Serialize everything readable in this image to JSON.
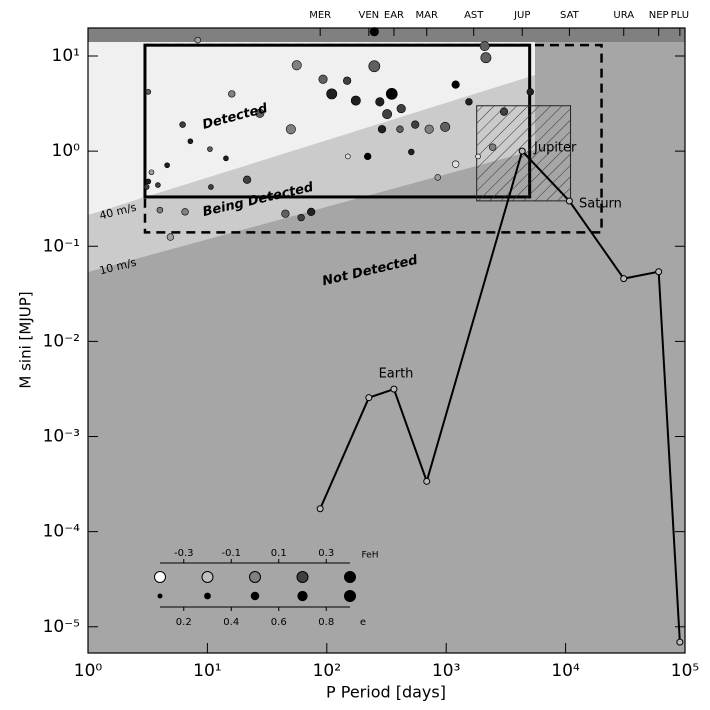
{
  "chart_data": {
    "type": "scatter",
    "xlabel": "P Period [days]",
    "ylabel": "M sini [MJUP]",
    "xscale": "log",
    "yscale": "log",
    "xlim": [
      1,
      100000
    ],
    "ylim": [
      5.3e-06,
      19.7
    ],
    "xticks": [
      {
        "value": 1,
        "label": "10⁰"
      },
      {
        "value": 10,
        "label": "10¹"
      },
      {
        "value": 100,
        "label": "10²"
      },
      {
        "value": 1000,
        "label": "10³"
      },
      {
        "value": 10000,
        "label": "10⁴"
      },
      {
        "value": 100000,
        "label": "10⁵"
      }
    ],
    "yticks": [
      {
        "value": 1e-05,
        "label": "10⁻⁵"
      },
      {
        "value": 0.0001,
        "label": "10⁻⁴"
      },
      {
        "value": 0.001,
        "label": "10⁻³"
      },
      {
        "value": 0.01,
        "label": "10⁻²"
      },
      {
        "value": 0.1,
        "label": "10⁻¹"
      },
      {
        "value": 1,
        "label": "10⁰"
      },
      {
        "value": 10,
        "label": "10¹"
      }
    ],
    "top_ticks": [
      {
        "value": 88,
        "label": "MER"
      },
      {
        "value": 225,
        "label": "VEN"
      },
      {
        "value": 365,
        "label": "EAR"
      },
      {
        "value": 687,
        "label": "MAR"
      },
      {
        "value": 1700,
        "label": "AST"
      },
      {
        "value": 4333,
        "label": "JUP"
      },
      {
        "value": 10759,
        "label": "SAT"
      },
      {
        "value": 30687,
        "label": "URA"
      },
      {
        "value": 60190,
        "label": "NEP"
      },
      {
        "value": 90560,
        "label": "PLU"
      }
    ],
    "exoplanets": {
      "x": [
        3.2,
        3.2,
        3.1,
        3.4,
        3.85,
        4.0,
        4.9,
        4.6,
        6.2,
        6.5,
        7.2,
        8.3,
        10.5,
        10.7,
        14.3,
        16,
        21.5,
        27.5,
        50,
        45,
        61,
        74,
        56,
        93,
        110,
        148,
        175,
        220,
        250,
        250,
        278,
        320,
        350,
        410,
        510,
        550,
        720,
        980,
        1200,
        1550,
        2150,
        2450,
        1850,
        3050,
        2100,
        5060,
        850,
        1200,
        150,
        420,
        290
      ],
      "values": [
        4.2,
        0.48,
        0.42,
        0.6,
        0.44,
        0.24,
        0.125,
        0.71,
        1.9,
        0.23,
        1.27,
        14.7,
        1.05,
        0.42,
        0.84,
        4,
        0.5,
        2.5,
        1.7,
        0.22,
        0.2,
        0.23,
        8,
        5.7,
        4,
        5.5,
        3.4,
        0.88,
        18,
        7.8,
        3.3,
        2.45,
        4,
        1.7,
        0.98,
        1.9,
        1.7,
        1.8,
        5,
        3.3,
        9.6,
        1.1,
        0.88,
        2.6,
        12.7,
        4.2,
        0.53,
        0.73,
        0.88,
        2.8,
        1.7
      ],
      "feh": [
        0.1,
        0.3,
        0.2,
        -0.1,
        0.2,
        0.0,
        -0.1,
        0.3,
        0.2,
        0.0,
        0.3,
        -0.1,
        0.1,
        0.2,
        0.3,
        0.0,
        0.2,
        0.1,
        0.0,
        0.1,
        0.2,
        0.3,
        0.0,
        0.1,
        0.3,
        0.2,
        0.3,
        0.4,
        0.4,
        0.1,
        0.3,
        0.2,
        0.4,
        0.1,
        0.3,
        0.2,
        0.0,
        0.1,
        0.4,
        0.3,
        0.1,
        0.0,
        -0.3,
        0.2,
        0.1,
        0.3,
        -0.1,
        -0.3,
        -0.3,
        0.2,
        0.3
      ],
      "e": [
        0.05,
        0.02,
        0.1,
        0.05,
        0.1,
        0.2,
        0.3,
        0.1,
        0.2,
        0.3,
        0.1,
        0.2,
        0.1,
        0.05,
        0.1,
        0.3,
        0.4,
        0.5,
        0.6,
        0.4,
        0.3,
        0.4,
        0.6,
        0.5,
        0.7,
        0.4,
        0.6,
        0.3,
        0.5,
        0.8,
        0.5,
        0.6,
        0.8,
        0.3,
        0.2,
        0.4,
        0.5,
        0.6,
        0.4,
        0.3,
        0.7,
        0.3,
        0.1,
        0.4,
        0.6,
        0.3,
        0.2,
        0.3,
        0.1,
        0.5,
        0.4
      ]
    },
    "solar_system": {
      "color": "#000000",
      "x": [
        88,
        225,
        365,
        687,
        4333,
        10759,
        30687,
        60190,
        90560
      ],
      "values": [
        0.000174,
        0.00256,
        0.00315,
        0.000338,
        1,
        0.299,
        0.0457,
        0.054,
        6.9e-06
      ]
    },
    "boxes": [
      {
        "x": [
          3,
          5000
        ],
        "y": [
          0.33,
          13
        ],
        "style": "solid"
      },
      {
        "x": [
          3,
          20000
        ],
        "y": [
          0.14,
          13
        ],
        "style": "dashed"
      },
      {
        "x": [
          1800,
          11000
        ],
        "y": [
          0.3,
          3
        ],
        "style": "hatched"
      }
    ],
    "annotations": [
      "Detected",
      "Being Detected",
      "Not Detected",
      "40 m/s",
      "10 m/s",
      "Earth",
      "Jupiter",
      "Saturn"
    ],
    "legend": {
      "feh_label": "FeH",
      "feh_ticks": [
        -0.3,
        -0.1,
        0.1,
        0.3
      ],
      "feh_lim": [
        -0.4,
        0.4
      ],
      "feh_circles": [
        -0.4,
        -0.2,
        0,
        0.2,
        0.4
      ],
      "e_label": "e",
      "e_ticks": [
        0.2,
        0.4,
        0.6,
        0.8
      ],
      "e_lim": [
        0.1,
        0.9
      ],
      "e_circles": [
        0.1,
        0.3,
        0.5,
        0.7,
        0.9
      ]
    }
  }
}
